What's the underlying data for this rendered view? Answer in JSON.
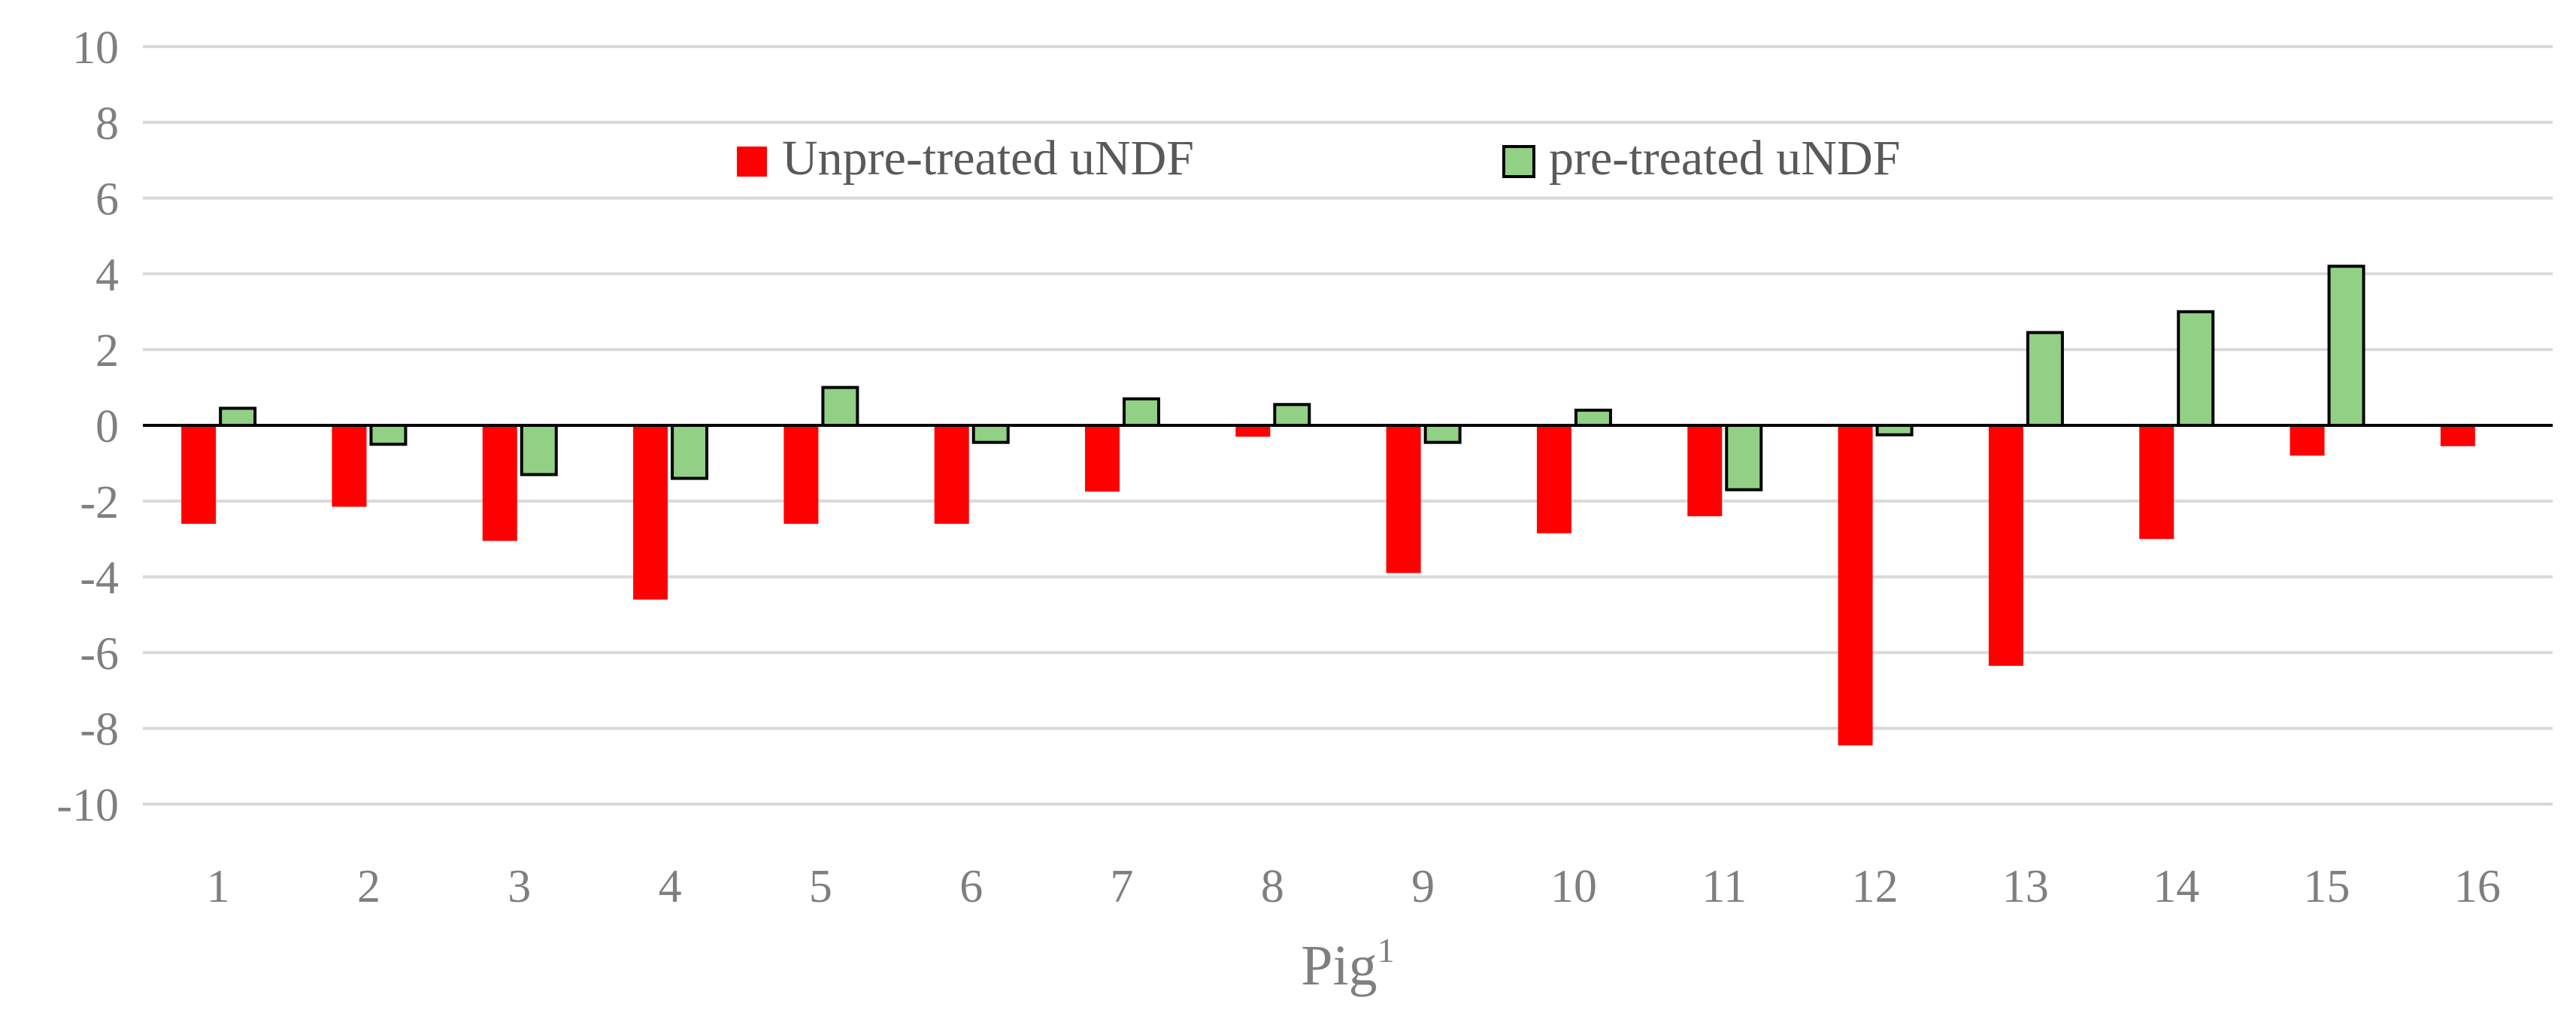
{
  "chart_data": {
    "type": "bar",
    "title": "",
    "xlabel": "Pig",
    "xlabel_superscript": "1",
    "ylabel": "",
    "ylim": [
      -10,
      10
    ],
    "yticks": [
      10,
      8,
      6,
      4,
      2,
      0,
      -2,
      -4,
      -6,
      -8,
      -10
    ],
    "grid": true,
    "legend_position": "top-center",
    "categories": [
      "1",
      "2",
      "3",
      "4",
      "5",
      "6",
      "7",
      "8",
      "9",
      "10",
      "11",
      "12",
      "13",
      "14",
      "15",
      "16"
    ],
    "series": [
      {
        "name": "Unpre-treated uNDF",
        "color": "#ff0000",
        "values": [
          -2.6,
          -2.15,
          -3.05,
          -4.6,
          -2.6,
          -2.6,
          -1.75,
          -0.3,
          -3.9,
          -2.85,
          -2.4,
          -8.45,
          -6.35,
          -3.0,
          -0.8,
          -0.55
        ]
      },
      {
        "name": "pre-treated uNDF",
        "color": "#92d085",
        "values": [
          0.45,
          -0.5,
          -1.3,
          -1.4,
          1.0,
          -0.45,
          0.7,
          0.55,
          -0.45,
          0.4,
          -1.7,
          -0.25,
          2.45,
          3.0,
          4.2,
          null
        ]
      }
    ]
  }
}
